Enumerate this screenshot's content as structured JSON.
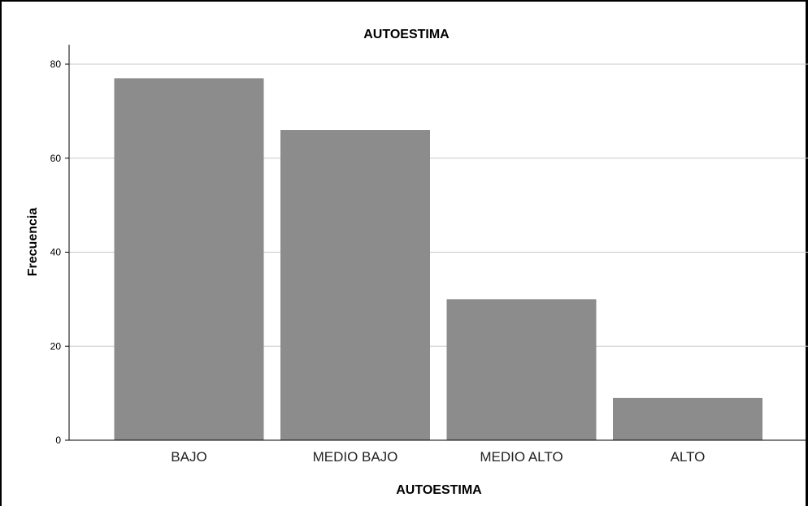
{
  "chart_data": {
    "type": "bar",
    "title": "AUTOESTIMA",
    "xlabel": "AUTOESTIMA",
    "ylabel": "Frecuencia",
    "categories": [
      "BAJO",
      "MEDIO BAJO",
      "MEDIO ALTO",
      "ALTO"
    ],
    "values": [
      77,
      66,
      30,
      9
    ],
    "ylim": [
      0,
      80
    ],
    "yticks": [
      0,
      20,
      40,
      60,
      80
    ],
    "grid": true,
    "bar_color": "#8c8c8c",
    "grid_color": "#c8c8c8"
  }
}
